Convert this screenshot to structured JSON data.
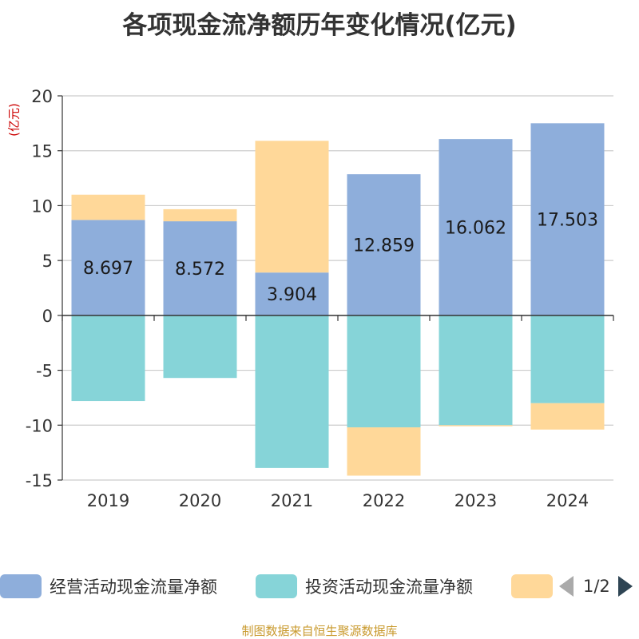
{
  "chart_data": {
    "type": "bar",
    "stacked": true,
    "title": "各项现金流净额历年变化情况(亿元)",
    "ylabel": "(亿元)",
    "xlabel": "",
    "ylim": [
      -15,
      20
    ],
    "yticks": [
      20,
      15,
      10,
      5,
      0,
      -5,
      -10,
      -15
    ],
    "categories": [
      "2019",
      "2020",
      "2021",
      "2022",
      "2023",
      "2024"
    ],
    "series": [
      {
        "name": "经营活动现金流量净额",
        "color": "#8eaedb",
        "values": [
          8.697,
          8.572,
          3.904,
          12.859,
          16.062,
          17.503
        ],
        "labels": [
          "8.697",
          "8.572",
          "3.904",
          "12.859",
          "16.062",
          "17.503"
        ]
      },
      {
        "name": "投资活动现金流量净额",
        "color": "#86d4d8",
        "values": [
          -7.8,
          -5.7,
          -13.9,
          -10.2,
          -10.0,
          -8.0
        ]
      },
      {
        "name": "",
        "color": "#ffd899",
        "values": [
          2.3,
          1.1,
          12.0,
          -4.4,
          -0.1,
          -2.4
        ]
      }
    ],
    "legend_position": "bottom",
    "grid": true
  },
  "legend": {
    "items": [
      {
        "label": "经营活动现金流量净额",
        "color": "#8eaedb"
      },
      {
        "label": "投资活动现金流量净额",
        "color": "#86d4d8"
      },
      {
        "label": "",
        "color": "#ffd899"
      }
    ],
    "page_text": "1/2"
  },
  "footer": {
    "source": "制图数据来自恒生聚源数据库"
  }
}
